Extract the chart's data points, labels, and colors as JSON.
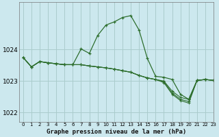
{
  "title": "Graphe pression niveau de la mer (hPa)",
  "background_color": "#cce8ee",
  "grid_color": "#aacccc",
  "line_color": "#2d6e2d",
  "xlim": [
    -0.5,
    23
  ],
  "ylim": [
    1021.7,
    1025.5
  ],
  "yticks": [
    1022,
    1023,
    1024
  ],
  "xticks": [
    0,
    1,
    2,
    3,
    4,
    5,
    6,
    7,
    8,
    9,
    10,
    11,
    12,
    13,
    14,
    15,
    16,
    17,
    18,
    19,
    20,
    21,
    22,
    23
  ],
  "series": [
    [
      1023.75,
      1023.45,
      1023.62,
      1023.58,
      1023.55,
      1023.52,
      1023.52,
      1024.02,
      1023.88,
      1024.45,
      1024.78,
      1024.88,
      1025.02,
      1025.08,
      1024.62,
      1023.72,
      1023.15,
      1023.12,
      1023.05,
      1022.58,
      1022.42,
      1023.02,
      1023.05,
      1023.02
    ],
    [
      1023.75,
      1023.45,
      1023.62,
      1023.58,
      1023.55,
      1023.52,
      1023.52,
      1023.52,
      1023.48,
      1023.45,
      1023.42,
      1023.38,
      1023.33,
      1023.28,
      1023.18,
      1023.1,
      1023.05,
      1023.0,
      1022.68,
      1022.48,
      1022.42,
      1023.02,
      1023.05,
      1023.02
    ],
    [
      1023.75,
      1023.45,
      1023.62,
      1023.58,
      1023.55,
      1023.52,
      1023.52,
      1023.52,
      1023.48,
      1023.45,
      1023.42,
      1023.38,
      1023.33,
      1023.28,
      1023.18,
      1023.1,
      1023.05,
      1022.98,
      1022.62,
      1022.42,
      1022.35,
      1023.02,
      1023.05,
      1023.02
    ],
    [
      1023.75,
      1023.45,
      1023.62,
      1023.58,
      1023.55,
      1023.52,
      1023.52,
      1023.52,
      1023.48,
      1023.45,
      1023.42,
      1023.38,
      1023.33,
      1023.28,
      1023.18,
      1023.1,
      1023.05,
      1022.95,
      1022.58,
      1022.38,
      1022.3,
      1023.02,
      1023.05,
      1023.02
    ]
  ]
}
